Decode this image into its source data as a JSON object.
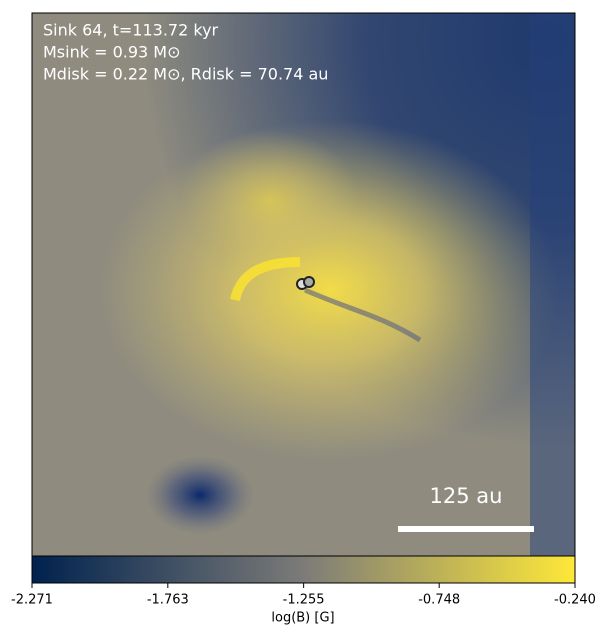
{
  "chart_data": {
    "type": "image",
    "annotations": [
      "Sink 64, t=113.72 kyr",
      "Msink = 0.93 M⊙",
      "Mdisk = 0.22 M⊙, Rdisk = 70.74 au"
    ],
    "scale_bar_label": "125 au",
    "colorbar": {
      "label": "log(B) [G]",
      "lim": [
        -2.271,
        -0.24
      ],
      "ticks": [
        -2.271,
        -1.763,
        -1.255,
        -0.748,
        {
          "value": -0.24,
          "label": "-0.240"
        }
      ],
      "colors": [
        "#00224e",
        "#7c7b78",
        "#fee838"
      ]
    }
  }
}
